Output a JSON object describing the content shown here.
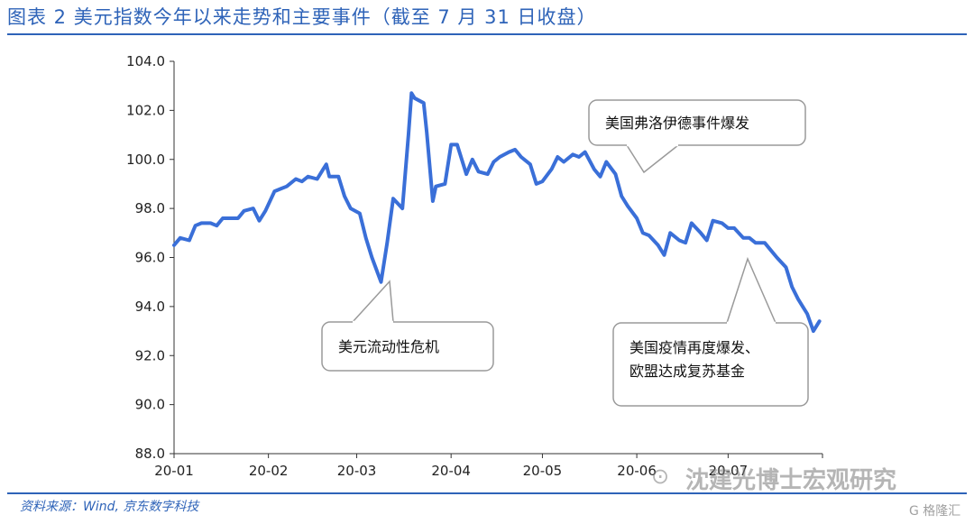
{
  "header": {
    "title": "图表 2 美元指数今年以来走势和主要事件（截至 7 月 31 日收盘）"
  },
  "footer": {
    "source": "资料来源：Wind, 京东数字科技",
    "watermark": "沈建光博士宏观研究",
    "watermark_icon": "wechat-icon",
    "badge": "G 格隆汇"
  },
  "chart_data": {
    "type": "line",
    "title": "",
    "xlabel": "",
    "ylabel": "",
    "ylim": [
      88,
      104
    ],
    "y_ticks": [
      "104.0",
      "102.0",
      "100.0",
      "98.0",
      "96.0",
      "94.0",
      "92.0",
      "90.0",
      "88.0"
    ],
    "x_ticks": [
      "20-01",
      "20-02",
      "20-03",
      "20-04",
      "20-05",
      "20-06",
      "20-07"
    ],
    "grid": false,
    "legend": "none",
    "line_color": "#3a6fd8",
    "series": [
      {
        "x": [
          "2020-01-01",
          "2020-01-03",
          "2020-01-06",
          "2020-01-08",
          "2020-01-10",
          "2020-01-13",
          "2020-01-15",
          "2020-01-17",
          "2020-01-20",
          "2020-01-22",
          "2020-01-24",
          "2020-01-27",
          "2020-01-29",
          "2020-01-31",
          "2020-02-03",
          "2020-02-05",
          "2020-02-07",
          "2020-02-10",
          "2020-02-12",
          "2020-02-14",
          "2020-02-17",
          "2020-02-19",
          "2020-02-20",
          "2020-02-21",
          "2020-02-24",
          "2020-02-26",
          "2020-02-28",
          "2020-03-02",
          "2020-03-04",
          "2020-03-06",
          "2020-03-09",
          "2020-03-11",
          "2020-03-13",
          "2020-03-16",
          "2020-03-18",
          "2020-03-19",
          "2020-03-20",
          "2020-03-23",
          "2020-03-24",
          "2020-03-26",
          "2020-03-27",
          "2020-03-30",
          "2020-04-01",
          "2020-04-03",
          "2020-04-06",
          "2020-04-08",
          "2020-04-10",
          "2020-04-13",
          "2020-04-15",
          "2020-04-17",
          "2020-04-20",
          "2020-04-22",
          "2020-04-24",
          "2020-04-27",
          "2020-04-29",
          "2020-05-01",
          "2020-05-04",
          "2020-05-06",
          "2020-05-08",
          "2020-05-11",
          "2020-05-13",
          "2020-05-15",
          "2020-05-18",
          "2020-05-20",
          "2020-05-22",
          "2020-05-25",
          "2020-05-27",
          "2020-05-29",
          "2020-06-01",
          "2020-06-03",
          "2020-06-05",
          "2020-06-08",
          "2020-06-10",
          "2020-06-12",
          "2020-06-15",
          "2020-06-17",
          "2020-06-19",
          "2020-06-22",
          "2020-06-24",
          "2020-06-26",
          "2020-06-29",
          "2020-07-01",
          "2020-07-03",
          "2020-07-06",
          "2020-07-08",
          "2020-07-10",
          "2020-07-13",
          "2020-07-15",
          "2020-07-17",
          "2020-07-20",
          "2020-07-22",
          "2020-07-24",
          "2020-07-27",
          "2020-07-29",
          "2020-07-31"
        ],
        "y": [
          96.5,
          96.8,
          96.7,
          97.3,
          97.4,
          97.4,
          97.3,
          97.6,
          97.6,
          97.6,
          97.9,
          98.0,
          97.5,
          97.9,
          98.7,
          98.8,
          98.9,
          99.2,
          99.1,
          99.3,
          99.2,
          99.6,
          99.8,
          99.3,
          99.3,
          98.5,
          98.0,
          97.8,
          96.8,
          96.0,
          95.0,
          96.6,
          98.4,
          98.0,
          101.0,
          102.7,
          102.5,
          102.3,
          101.1,
          98.3,
          98.9,
          99.0,
          100.6,
          100.6,
          99.4,
          100.0,
          99.5,
          99.4,
          99.9,
          100.1,
          100.3,
          100.4,
          100.1,
          99.8,
          99.0,
          99.1,
          99.6,
          100.1,
          99.9,
          100.2,
          100.1,
          100.3,
          99.6,
          99.3,
          99.9,
          99.4,
          98.5,
          98.1,
          97.6,
          97.0,
          96.9,
          96.5,
          96.1,
          97.0,
          96.7,
          96.6,
          97.4,
          97.0,
          96.7,
          97.5,
          97.4,
          97.2,
          97.2,
          96.8,
          96.8,
          96.6,
          96.6,
          96.3,
          96.0,
          95.6,
          94.8,
          94.3,
          93.7,
          93.0,
          93.4
        ]
      }
    ],
    "annotations": [
      {
        "text": "美元流动性危机",
        "x": "2020-03-09",
        "y": 95.0
      },
      {
        "text": "美国弗洛伊德事件爆发",
        "x": "2020-06-01",
        "y": 99.4
      },
      {
        "text": "美国疫情再度爆发、",
        "text2": "欧盟达成复苏基金",
        "x": "2020-07-06",
        "y": 96.8
      }
    ]
  }
}
